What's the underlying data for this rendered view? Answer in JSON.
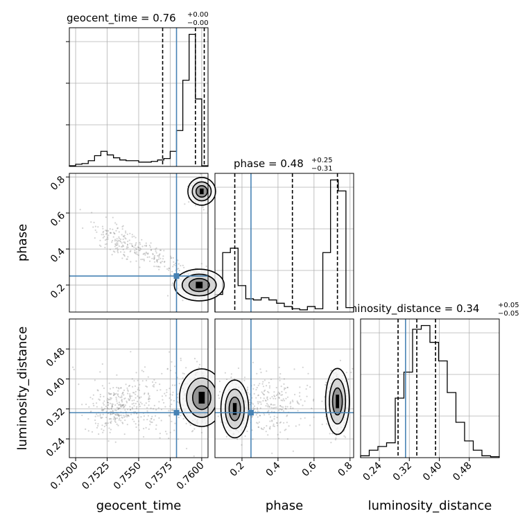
{
  "figure": {
    "type": "corner_plot"
  },
  "chart_data": {
    "type": "corner",
    "parameters": [
      "geocent_time",
      "phase",
      "luminosity_distance"
    ],
    "truths": {
      "geocent_time": 0.758,
      "phase": 0.25,
      "luminosity_distance": 0.31
    },
    "colors": {
      "truth": "#4682b4",
      "hist": "#000000",
      "grid": "#b0b0b0",
      "scatter": "#808080"
    },
    "grid": true,
    "ranges": {
      "geocent_time": [
        0.7495,
        0.7605
      ],
      "phase": [
        0.05,
        0.82
      ],
      "luminosity_distance": [
        0.19,
        0.56
      ]
    },
    "ticks": {
      "geocent_time": [
        "0.7500",
        "0.7525",
        "0.7550",
        "0.7575",
        "0.7600"
      ],
      "phase": [
        "0.2",
        "0.4",
        "0.6",
        "0.8"
      ],
      "luminosity_distance": [
        "0.24",
        "0.32",
        "0.40",
        "0.48"
      ]
    },
    "titles": {
      "geocent_time": {
        "name": "geocent_time",
        "value": "0.76",
        "plus": "+0.00",
        "minus": "−0.00"
      },
      "phase": {
        "name": "phase",
        "value": "0.48",
        "plus": "+0.25",
        "minus": "−0.31"
      },
      "luminosity_distance": {
        "name": "luminosity_distance",
        "value": "0.34",
        "plus": "+0.05",
        "minus": "−0.05"
      }
    },
    "quantiles": {
      "geocent_time": [
        0.7569,
        0.7595,
        0.7602
      ],
      "phase": [
        0.16,
        0.48,
        0.73
      ],
      "luminosity_distance": [
        0.29,
        0.34,
        0.39
      ]
    },
    "histograms": {
      "geocent_time": {
        "range": [
          0.7495,
          0.7605
        ],
        "counts": [
          0.5,
          1.5,
          2,
          4,
          7.5,
          10.5,
          8,
          6,
          4.5,
          4,
          4,
          3,
          3,
          3.5,
          4.5,
          5.5,
          10.5,
          25,
          60,
          92,
          47,
          0.5
        ]
      },
      "phase": {
        "range": [
          0.05,
          0.82
        ],
        "counts": [
          8,
          27,
          29,
          12,
          6,
          5.5,
          6.5,
          5.5,
          4,
          2.5,
          1.5,
          1,
          2.5,
          1.5,
          27,
          60,
          55,
          2
        ]
      },
      "luminosity_distance": {
        "range": [
          0.19,
          0.56
        ],
        "counts": [
          1,
          4,
          6,
          8,
          32,
          46,
          69,
          71,
          62,
          52,
          35,
          19,
          9,
          4,
          1,
          0.5
        ]
      }
    },
    "contours_2d": {
      "phase_vs_geocent_time": "high-probability clusters near geocent_time≈0.760 at phase≈0.72 and phase≈0.20, connected by a thin band through phase≈0.45 at geocent_time≈0.7525",
      "luminosity_distance_vs_geocent_time": "main mode near geocent_time≈0.7600, luminosity_distance≈0.34; secondary mode near geocent_time≈0.7530, luminosity_distance≈0.32",
      "luminosity_distance_vs_phase": "modes near phase≈0.15 and phase≈0.73 at luminosity_distance≈0.33"
    }
  }
}
